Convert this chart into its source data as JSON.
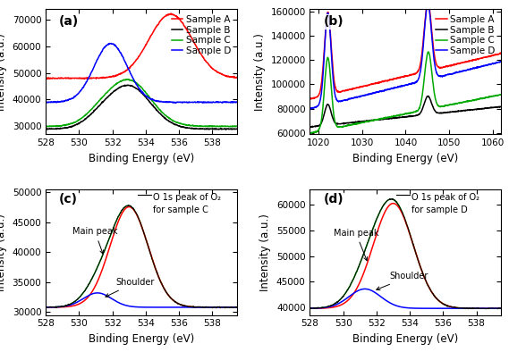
{
  "panel_a": {
    "label": "(a)",
    "xlabel": "Binding Energy (eV)",
    "ylabel": "Intensity (a.u.)",
    "xlim": [
      528,
      539.5
    ],
    "ylim": [
      27000,
      74000
    ],
    "yticks": [
      30000,
      40000,
      50000,
      60000,
      70000
    ],
    "xticks": [
      528,
      530,
      532,
      534,
      536,
      538
    ],
    "legend": [
      "Sample A",
      "Sample B",
      "Sample C",
      "Sample D"
    ],
    "colors": [
      "#ff0000",
      "#000000",
      "#00aa00",
      "#0000ff"
    ]
  },
  "panel_b": {
    "label": "(b)",
    "xlabel": "Binding Energy (eV)",
    "ylabel": "Intensity (a.u.)",
    "xlim": [
      1018,
      1062
    ],
    "ylim": [
      59000,
      162000
    ],
    "yticks": [
      60000,
      80000,
      100000,
      120000,
      140000,
      160000
    ],
    "xticks": [
      1020,
      1030,
      1040,
      1050,
      1060
    ],
    "legend": [
      "Sample A",
      "Sample B",
      "Sample C",
      "Sample D"
    ],
    "colors": [
      "#ff0000",
      "#000000",
      "#00aa00",
      "#0000ff"
    ]
  },
  "panel_c": {
    "label": "(c)",
    "xlabel": "Binding Energy (eV)",
    "ylabel": "Intensity (a.u.)",
    "xlim": [
      528,
      539.5
    ],
    "ylim": [
      29500,
      50500
    ],
    "yticks": [
      30000,
      35000,
      40000,
      45000,
      50000
    ],
    "xticks": [
      528,
      530,
      532,
      534,
      536,
      538
    ],
    "annotation_legend": "O 1s peak of O₂\nfor sample C",
    "main_peak_label": "Main peak",
    "shoulder_label": "Shoulder"
  },
  "panel_d": {
    "label": "(d)",
    "xlabel": "Binding Energy (eV)",
    "ylabel": "Intensity (a.u.)",
    "xlim": [
      528,
      539.5
    ],
    "ylim": [
      38500,
      63000
    ],
    "yticks": [
      40000,
      45000,
      50000,
      55000,
      60000
    ],
    "xticks": [
      528,
      530,
      532,
      534,
      536,
      538
    ],
    "annotation_legend": "O 1s peak of O₂\nfor sample D",
    "main_peak_label": "Main peak",
    "shoulder_label": "Shoulder"
  },
  "background_color": "#ffffff",
  "tick_fontsize": 7.5,
  "label_fontsize": 8.5,
  "legend_fontsize": 7.5
}
